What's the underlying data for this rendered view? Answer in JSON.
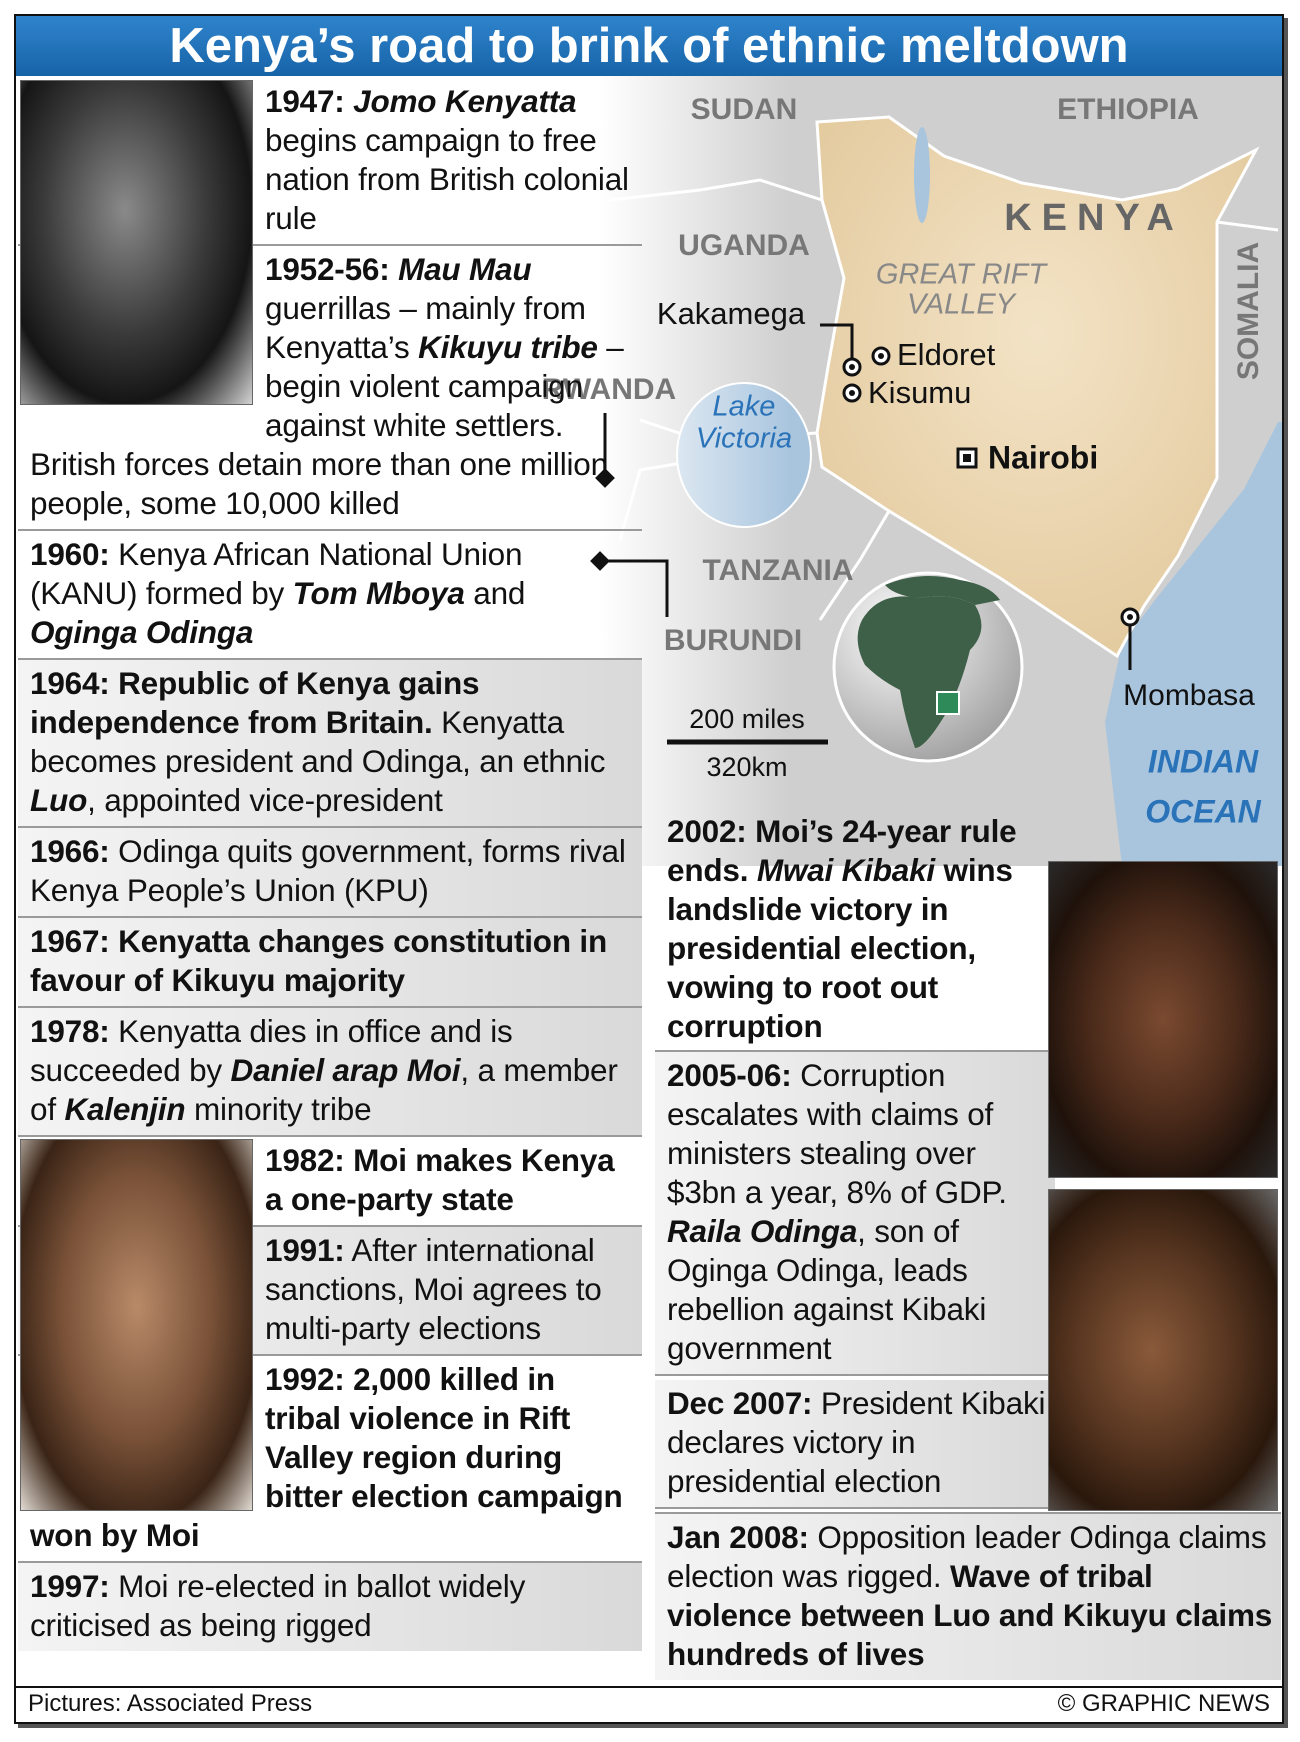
{
  "title": "Kenya’s road to brink of ethnic meltdown",
  "timeline": [
    {
      "parts": [
        "1947:",
        "Jomo Kenyatta",
        "begins campaign to free nation from British colonial rule"
      ]
    },
    {
      "parts": [
        "1952-56:",
        "Mau Mau",
        "guerrillas – mainly from Kenyatta’s",
        "Kikuyu tribe",
        "– begin violent campaign against white settlers. British forces detain more than one million people, some 10,000 killed"
      ]
    },
    {
      "parts": [
        "1960:",
        "Kenya African National Union (KANU) formed by",
        "Tom Mboya",
        "and",
        "Oginga Odinga"
      ]
    },
    {
      "parts": [
        "1964: Republic of Kenya gains independence from Britain.",
        "Kenyatta becomes president and Odinga, an ethnic",
        "Luo",
        ", appointed vice-president"
      ]
    },
    {
      "parts": [
        "1966:",
        "Odinga quits government, forms rival Kenya People’s Union (KPU)"
      ]
    },
    {
      "parts": [
        "1967: Kenyatta changes constitution in favour of Kikuyu majority"
      ]
    },
    {
      "parts": [
        "1978:",
        "Kenyatta dies in office and is succeeded by",
        "Daniel arap Moi",
        ", a member of",
        "Kalenjin",
        "minority tribe"
      ]
    },
    {
      "parts": [
        "1982: Moi makes Kenya a one-party state"
      ]
    },
    {
      "parts": [
        "1991:",
        "After international sanctions, Moi agrees to multi-party elections"
      ]
    },
    {
      "parts": [
        "1992: 2,000 killed in tribal violence in Rift Valley region during bitter election campaign won by Moi"
      ]
    },
    {
      "parts": [
        "1997:",
        "Moi re-elected in ballot widely criticised as being rigged"
      ]
    },
    {
      "parts": [
        "2002: Moi’s 24-year rule ends.",
        "Mwai Kibaki",
        "wins landslide victory in presidential election, vowing to root out corruption"
      ]
    },
    {
      "parts": [
        "2005-06:",
        "Corruption escalates with claims of ministers stealing over $3bn a year, 8% of GDP.",
        "Raila Odinga",
        ", son of Oginga Odinga, leads rebellion against Kibaki government"
      ]
    },
    {
      "parts": [
        "Dec 2007:",
        "President Kibaki declares victory in presidential election"
      ]
    },
    {
      "parts": [
        "Jan 2008:",
        "Opposition leader Odinga claims election was rigged.",
        "Wave of tribal violence between Luo and Kikuyu claims hundreds of lives"
      ]
    }
  ],
  "map": {
    "sudan": "SUDAN",
    "ethiopia": "ETHIOPIA",
    "kenya": "KENYA",
    "somalia": "SOMALIA",
    "uganda": "UGANDA",
    "rift_valley": [
      "GREAT RIFT",
      "VALLEY"
    ],
    "kakamega": "Kakamega",
    "eldoret": "Eldoret",
    "kisumu": "Kisumu",
    "nairobi": "Nairobi",
    "rwanda": "RWANDA",
    "lake_victoria": [
      "Lake",
      "Victoria"
    ],
    "tanzania": "TANZANIA",
    "burundi": "BURUNDI",
    "mombasa": "Mombasa",
    "indian_ocean": [
      "INDIAN",
      "OCEAN"
    ],
    "scale": {
      "miles": "200 miles",
      "km": "320km"
    }
  },
  "credits": {
    "pictures": "Pictures: Associated Press",
    "copyright": "© GRAPHIC NEWS"
  }
}
